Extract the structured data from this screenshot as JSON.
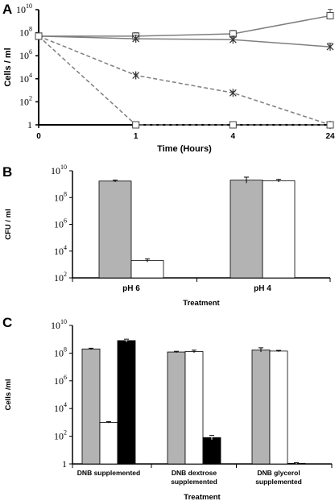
{
  "chart_data": [
    {
      "panel": "A",
      "type": "line",
      "xlabel": "Time (Hours)",
      "ylabel": "Cells / ml",
      "x": [
        0,
        1,
        4,
        24
      ],
      "xticks": [
        "0",
        "1",
        "4",
        "24"
      ],
      "yscale": "log",
      "ylim": [
        1,
        10000000000
      ],
      "yticks": [
        {
          "v": 1,
          "base": "1",
          "exp": ""
        },
        {
          "v": 100,
          "base": "10",
          "exp": "2"
        },
        {
          "v": 10000,
          "base": "10",
          "exp": "4"
        },
        {
          "v": 1000000,
          "base": "10",
          "exp": "6"
        },
        {
          "v": 100000000,
          "base": "10",
          "exp": "8"
        },
        {
          "v": 10000000000,
          "base": "10",
          "exp": "10"
        }
      ],
      "series": [
        {
          "marker": "square",
          "dashed": false,
          "color": "#7f7f7f",
          "values": [
            50000000,
            50000000,
            80000000,
            3000000000
          ],
          "err_hi": [
            0,
            0.3,
            0.3,
            0.55
          ]
        },
        {
          "marker": "star",
          "dashed": false,
          "color": "#7f7f7f",
          "values": [
            50000000,
            30000000,
            25000000,
            6000000
          ],
          "err_hi": [
            0,
            0.3,
            0.3,
            0.3
          ]
        },
        {
          "marker": "star",
          "dashed": true,
          "color": "#7f7f7f",
          "values": [
            50000000,
            20000,
            600,
            1
          ],
          "err_hi": [
            0,
            0.1,
            0.1,
            0
          ]
        },
        {
          "marker": "square",
          "dashed": true,
          "color": "#7f7f7f",
          "values": [
            50000000,
            1,
            1,
            1
          ],
          "err_hi": [
            0,
            0,
            0,
            0
          ]
        }
      ]
    },
    {
      "panel": "B",
      "type": "bar",
      "xlabel": "Treatment",
      "ylabel": "CFU / ml",
      "categories": [
        "pH 6",
        "pH 4"
      ],
      "yscale": "log",
      "ylim": [
        100,
        10000000000
      ],
      "yticks": [
        {
          "v": 100,
          "base": "10",
          "exp": "2"
        },
        {
          "v": 10000,
          "base": "10",
          "exp": "4"
        },
        {
          "v": 1000000,
          "base": "10",
          "exp": "6"
        },
        {
          "v": 100000000,
          "base": "10",
          "exp": "8"
        },
        {
          "v": 10000000000,
          "base": "10",
          "exp": "10"
        }
      ],
      "series": [
        {
          "color": "#b3b3b3",
          "values": [
            1700000000,
            2000000000
          ],
          "err": [
            0.07,
            0.22
          ]
        },
        {
          "color": "#ffffff",
          "values": [
            2000,
            1800000000
          ],
          "err": [
            0.12,
            0.1
          ]
        }
      ]
    },
    {
      "panel": "C",
      "type": "bar",
      "xlabel": "Treatment",
      "ylabel": "Cells /ml",
      "categories": [
        [
          "DNB supplemented"
        ],
        [
          "DNB dextrose",
          "supplemented"
        ],
        [
          "DNB glycerol",
          "supplemented"
        ]
      ],
      "yscale": "log",
      "ylim": [
        1,
        10000000000
      ],
      "yticks": [
        {
          "v": 1,
          "base": "1",
          "exp": ""
        },
        {
          "v": 100,
          "base": "10",
          "exp": "2"
        },
        {
          "v": 10000,
          "base": "10",
          "exp": "4"
        },
        {
          "v": 1000000,
          "base": "10",
          "exp": "6"
        },
        {
          "v": 100000000,
          "base": "10",
          "exp": "8"
        },
        {
          "v": 10000000000,
          "base": "10",
          "exp": "10"
        }
      ],
      "series": [
        {
          "color": "#b3b3b3",
          "values": [
            200000000,
            120000000,
            170000000
          ],
          "err": [
            0.05,
            0.05,
            0.15
          ]
        },
        {
          "color": "#ffffff",
          "values": [
            1000,
            130000000,
            140000000
          ],
          "err": [
            0.05,
            0.1,
            0.05
          ]
        },
        {
          "color": "#000000",
          "values": [
            800000000,
            80,
            1.1
          ],
          "err": [
            0.1,
            0.15,
            0.05
          ]
        }
      ]
    }
  ]
}
